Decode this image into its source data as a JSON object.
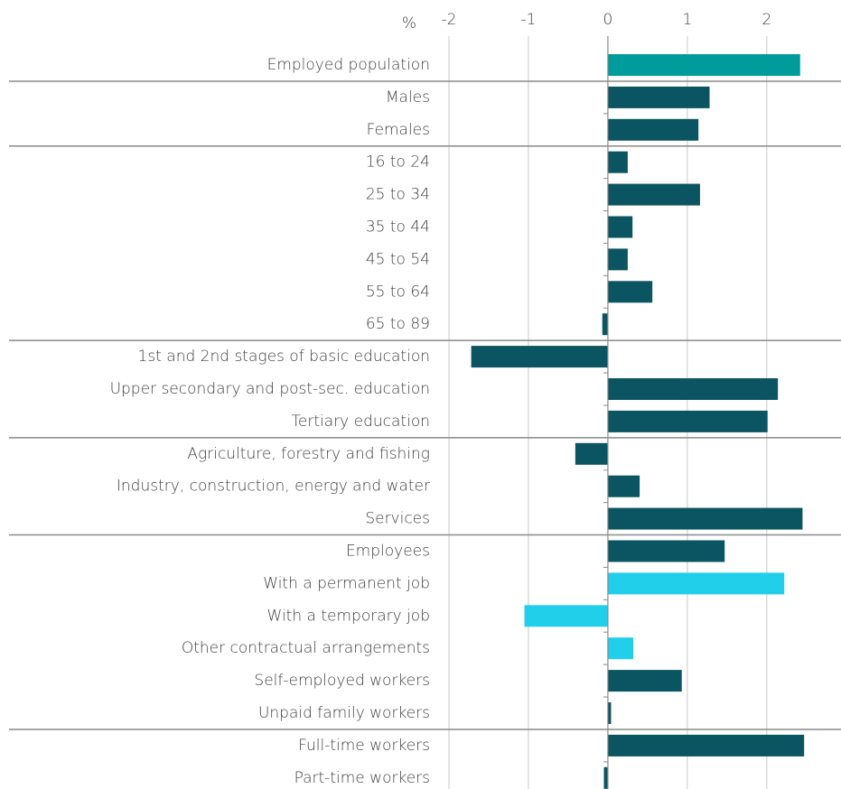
{
  "chart_data": {
    "type": "barh",
    "axis_label": "%",
    "categories": [
      "Employed population",
      "Males",
      "Females",
      "16 to 24",
      "25 to 34",
      "35 to 44",
      "45 to 54",
      "55 to 64",
      "65 to 89",
      "1st and 2nd stages of basic education",
      "Upper secondary and post-sec. education",
      "Tertiary education",
      "Agriculture, forestry and fishing",
      "Industry, construction, energy and water",
      "Services",
      "Employees",
      "With a permanent job",
      "With a temporary job",
      "Other contractual arrangements",
      "Self-employed workers",
      "Unpaid family workers",
      "Full-time workers",
      "Part-time workers"
    ],
    "values": [
      2.42,
      1.28,
      1.14,
      0.25,
      1.16,
      0.31,
      0.25,
      0.56,
      -0.07,
      -1.72,
      2.14,
      2.01,
      -0.41,
      0.4,
      2.45,
      1.47,
      2.22,
      -1.05,
      0.32,
      0.93,
      0.04,
      2.47,
      -0.05
    ],
    "colors": [
      "#009c9c",
      "#0a5561",
      "#0a5561",
      "#0a5561",
      "#0a5561",
      "#0a5561",
      "#0a5561",
      "#0a5561",
      "#0a5561",
      "#0a5561",
      "#0a5561",
      "#0a5561",
      "#0a5561",
      "#0a5561",
      "#0a5561",
      "#0a5561",
      "#22cfea",
      "#22cfea",
      "#22cfea",
      "#0a5561",
      "#0a5561",
      "#0a5561",
      "#0a5561"
    ],
    "xlim": [
      -2,
      2.9
    ],
    "xticks": [
      -2,
      -1,
      0,
      1,
      2
    ],
    "grid": true
  }
}
